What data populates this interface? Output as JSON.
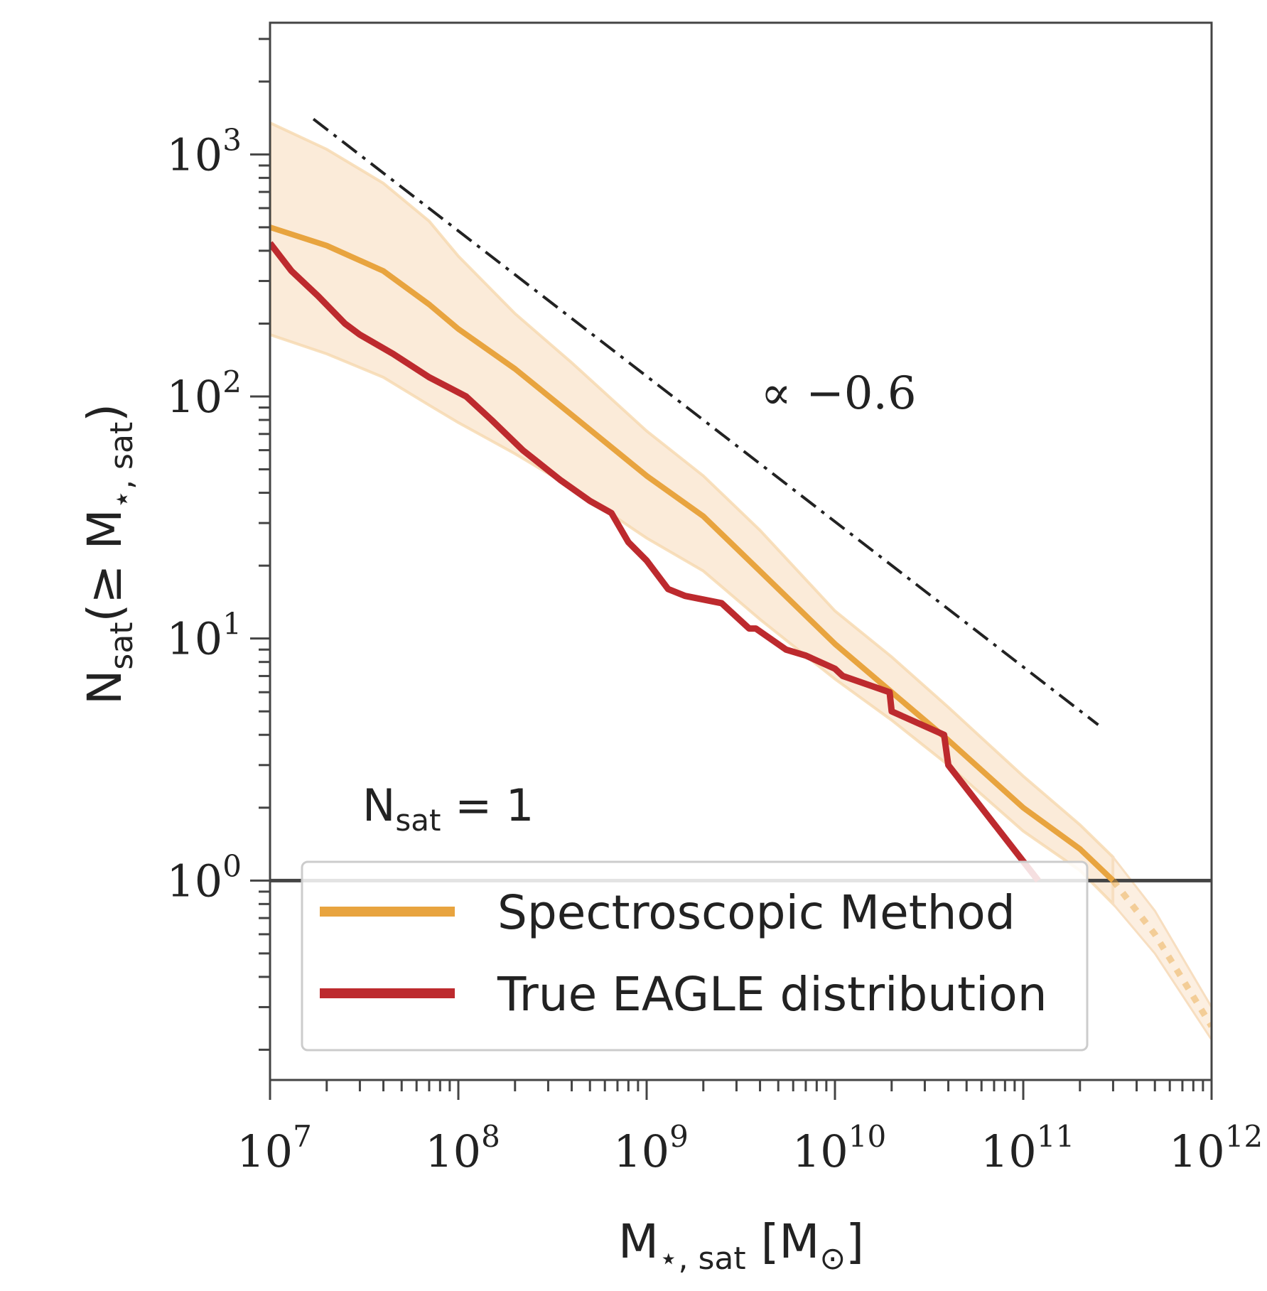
{
  "chart_data": {
    "type": "line",
    "x_scale": "log",
    "y_scale": "log",
    "xlim": [
      10000000,
      1000000000000
    ],
    "ylim": [
      0.15,
      3500
    ],
    "xlabel": {
      "main": "M",
      "sub": "⋆, sat",
      "unit": " [M",
      "unit_sub": "⊙",
      "close": "]"
    },
    "ylabel": {
      "main": "N",
      "sub": "sat",
      "rest": "(≥ M",
      "sub2": "⋆, sat",
      "close": ")"
    },
    "x_ticks": [
      {
        "value": 10000000,
        "base": "10",
        "exp": "7"
      },
      {
        "value": 100000000,
        "base": "10",
        "exp": "8"
      },
      {
        "value": 1000000000,
        "base": "10",
        "exp": "9"
      },
      {
        "value": 10000000000,
        "base": "10",
        "exp": "10"
      },
      {
        "value": 100000000000,
        "base": "10",
        "exp": "11"
      },
      {
        "value": 1000000000000,
        "base": "10",
        "exp": "12"
      }
    ],
    "y_ticks": [
      {
        "value": 1,
        "base": "10",
        "exp": "0"
      },
      {
        "value": 10,
        "base": "10",
        "exp": "1"
      },
      {
        "value": 100,
        "base": "10",
        "exp": "2"
      },
      {
        "value": 1000,
        "base": "10",
        "exp": "3"
      }
    ],
    "annotations": {
      "slope_label": "∝ −0.6",
      "threshold_label_main": "N",
      "threshold_label_sub": "sat",
      "threshold_label_rest": " = 1"
    },
    "reference_lines": {
      "power_law": {
        "style": "dash-dot",
        "color": "#222222",
        "x": [
          17000000,
          250000000000
        ],
        "y": [
          1400,
          4.4
        ]
      },
      "threshold": {
        "y": 1,
        "color": "#444444"
      }
    },
    "series": [
      {
        "name": "Spectroscopic Method",
        "color": "#E8A43F",
        "band_color": "#FBEBD9",
        "x": [
          10000000,
          20000000,
          40000000,
          70000000,
          100000000,
          200000000,
          400000000,
          1000000000,
          2000000000,
          4000000000,
          10000000000,
          20000000000,
          40000000000,
          100000000000,
          200000000000,
          300000000000
        ],
        "y": [
          500,
          420,
          330,
          240,
          190,
          130,
          84,
          47,
          32,
          19,
          9.5,
          6.0,
          3.8,
          2.0,
          1.35,
          1.0
        ],
        "band_upper": [
          1350,
          1050,
          760,
          530,
          380,
          220,
          138,
          72,
          47,
          28,
          13,
          8.4,
          5.2,
          2.7,
          1.7,
          1.25
        ],
        "band_lower": [
          180,
          150,
          120,
          92,
          78,
          58,
          42,
          26,
          19,
          12,
          6.8,
          4.6,
          3.0,
          1.6,
          1.1,
          0.8
        ],
        "extrapolated": {
          "x": [
            300000000000,
            500000000000,
            1000000000000
          ],
          "y": [
            1.0,
            0.6,
            0.25
          ],
          "band_upper": [
            1.25,
            0.75,
            0.3
          ],
          "band_lower": [
            0.8,
            0.5,
            0.22
          ]
        }
      },
      {
        "name": "True EAGLE distribution",
        "color": "#BD2A2E",
        "x": [
          10000000,
          13000000,
          18000000,
          25000000,
          30000000,
          45000000,
          70000000,
          110000000,
          150000000,
          220000000,
          350000000,
          500000000,
          650000000,
          800000000,
          1000000000,
          1300000000,
          1600000000,
          2500000000,
          3500000000,
          3800000000,
          5500000000,
          7000000000,
          10000000000,
          11000000000,
          19500000000,
          20000000000,
          38000000000,
          40000000000,
          120000000000
        ],
        "y": [
          430,
          330,
          260,
          200,
          180,
          150,
          120,
          100,
          80,
          60,
          45,
          37,
          33,
          25,
          21,
          16,
          15,
          14,
          11,
          11,
          9,
          8.5,
          7.5,
          7,
          6,
          5,
          4,
          3,
          1
        ]
      }
    ],
    "legend": {
      "placement": "lower-left",
      "entries": [
        "Spectroscopic Method",
        "True EAGLE distribution"
      ]
    }
  }
}
